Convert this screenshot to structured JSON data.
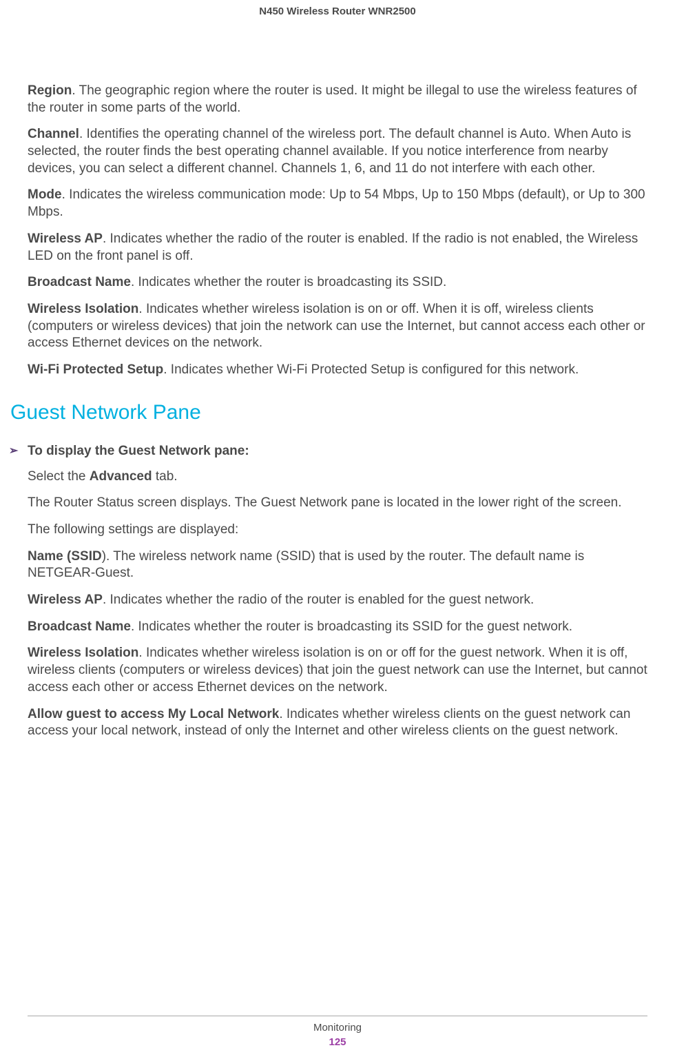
{
  "header": {
    "title": "N450 Wireless Router WNR2500"
  },
  "section1": {
    "entries": [
      {
        "bold": "Region",
        "text": ". The geographic region where the router is used. It might be illegal to use the wireless features of the router in some parts of the world."
      },
      {
        "bold": "Channel",
        "text": ". Identifies the operating channel of the wireless port. The default channel is Auto. When Auto is selected, the router finds the best operating channel available. If you notice interference from nearby devices, you can select a different channel. Channels 1, 6, and 11 do not interfere with each other."
      },
      {
        "bold": "Mode",
        "text": ". Indicates the wireless communication mode: Up to 54 Mbps, Up to 150 Mbps (default), or Up to 300 Mbps."
      },
      {
        "bold": "Wireless AP",
        "text": ". Indicates whether the radio of the router is enabled. If the radio is not enabled, the Wireless LED on the front panel is off."
      },
      {
        "bold": "Broadcast Name",
        "text": ". Indicates whether the router is broadcasting its SSID."
      },
      {
        "bold": "Wireless Isolation",
        "text": ". Indicates whether wireless isolation is on or off. When it is off, wireless clients (computers or wireless devices) that join the network can use the Internet, but cannot access each other or access Ethernet devices on the network."
      },
      {
        "bold": "Wi-Fi Protected Setup",
        "text": ". Indicates whether Wi-Fi Protected Setup is configured for this network."
      }
    ]
  },
  "section2": {
    "heading": "Guest Network Pane",
    "proc_label": "To display the Guest Network pane:",
    "intro1_prefix": "Select the ",
    "intro1_bold": "Advanced",
    "intro1_suffix": " tab.",
    "intro2": "The Router Status screen displays. The Guest Network pane is located in the lower right of the screen.",
    "intro3": "The following settings are displayed:",
    "entries": [
      {
        "bold": "Name (SSID",
        "text": "). The wireless network name (SSID) that is used by the router. The default name is NETGEAR-Guest."
      },
      {
        "bold": "Wireless AP",
        "text": ". Indicates whether the radio of the router is enabled for the guest network."
      },
      {
        "bold": "Broadcast Name",
        "text": ". Indicates whether the router is broadcasting its SSID for the guest network."
      },
      {
        "bold": "Wireless Isolation",
        "text": ". Indicates whether wireless isolation is on or off for the guest network. When it is off, wireless clients (computers or wireless devices) that join the guest network can use the Internet, but cannot access each other or access Ethernet devices on the network."
      },
      {
        "bold": "Allow guest to access My Local Network",
        "text": ". Indicates whether wireless clients on the guest network can access your local network, instead of only the Internet and other wireless clients on the guest network."
      }
    ]
  },
  "footer": {
    "chapter": "Monitoring",
    "page": "125"
  },
  "colors": {
    "heading_color": "#00b0e0",
    "arrow_color": "#593e76",
    "page_color": "#9c3fa5",
    "text_color": "#4a4a4a",
    "background": "#ffffff",
    "line_color": "#a8a8a8"
  },
  "typography": {
    "body_fontsize": 19,
    "heading_fontsize": 30,
    "header_fontsize": 15,
    "footer_fontsize": 15
  }
}
